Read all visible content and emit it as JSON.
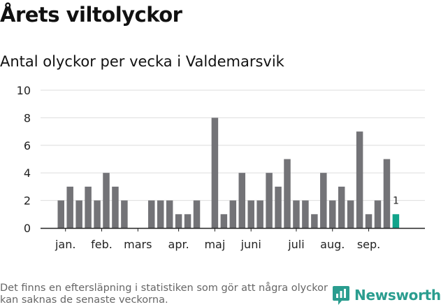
{
  "header": {
    "title": "Årets viltolyckor",
    "subtitle": "Antal olyckor per vecka i Valdemarsvik"
  },
  "footer": {
    "note": "Det finns en eftersläpning i statistiken som gör att några olyckor kan saknas de senaste veckorna.",
    "brand": "Newsworthy"
  },
  "colors": {
    "bar": "#737377",
    "highlight": "#10a38a",
    "brand": "#2a9d8f",
    "grid": "#dddddd"
  },
  "chart_data": {
    "type": "bar",
    "x": [
      1,
      2,
      3,
      4,
      5,
      6,
      7,
      8,
      9,
      10,
      11,
      12,
      13,
      14,
      15,
      16,
      17,
      18,
      19,
      20,
      21,
      22,
      23,
      24,
      25,
      26,
      27,
      28,
      29,
      30,
      31,
      32,
      33,
      34,
      35,
      36,
      37,
      38
    ],
    "values": [
      2,
      3,
      2,
      3,
      2,
      4,
      3,
      2,
      0,
      0,
      2,
      2,
      2,
      1,
      1,
      2,
      0,
      8,
      1,
      2,
      4,
      2,
      2,
      4,
      3,
      5,
      2,
      2,
      1,
      4,
      2,
      3,
      2,
      7,
      1,
      2,
      5,
      1
    ],
    "highlight_last": true,
    "data_labels": [
      {
        "index": 37,
        "text": "1"
      }
    ],
    "ylim": [
      0,
      10
    ],
    "yticks": [
      0,
      2,
      4,
      6,
      8,
      10
    ],
    "month_labels": [
      {
        "label": "jan.",
        "at": 1.5
      },
      {
        "label": "feb.",
        "at": 5.5
      },
      {
        "label": "mars",
        "at": 9.5
      },
      {
        "label": "apr.",
        "at": 14
      },
      {
        "label": "maj",
        "at": 18
      },
      {
        "label": "juni",
        "at": 22
      },
      {
        "label": "juli",
        "at": 27
      },
      {
        "label": "aug.",
        "at": 31
      },
      {
        "label": "sep.",
        "at": 35
      }
    ],
    "xlabel": "",
    "ylabel": "",
    "grid": true
  }
}
